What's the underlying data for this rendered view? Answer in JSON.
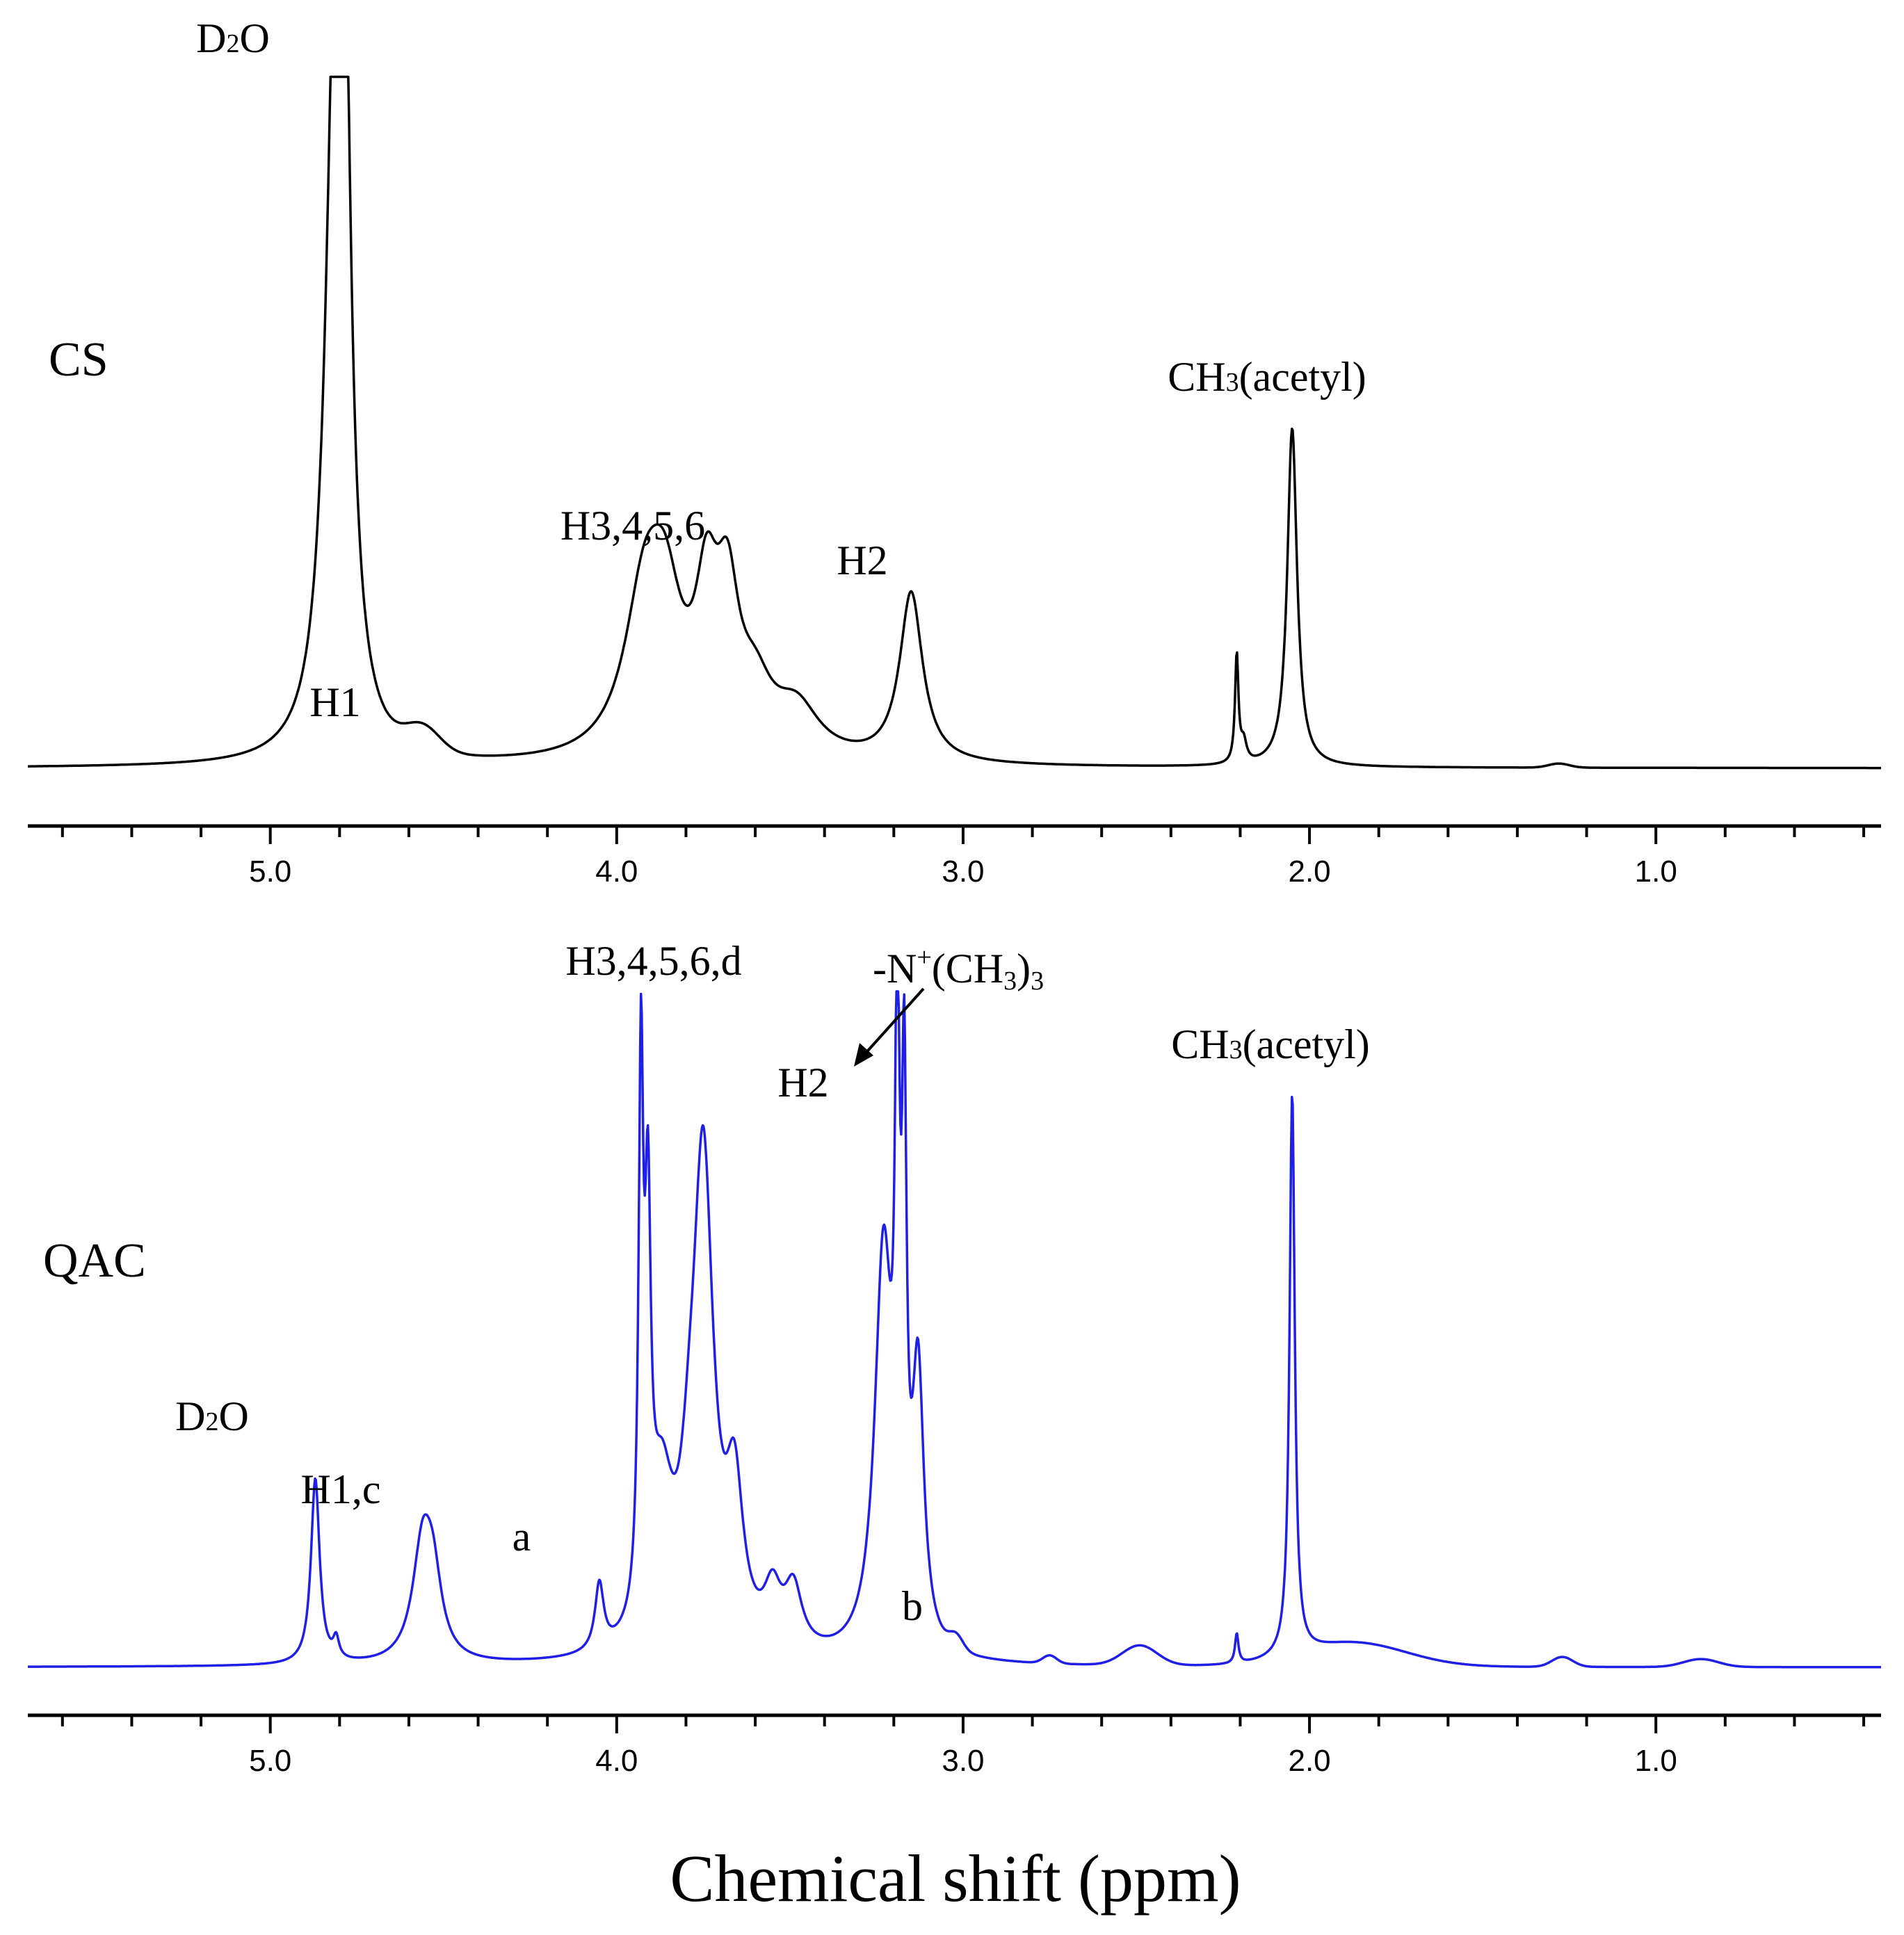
{
  "chart_data": {
    "type": "line",
    "title": "",
    "xlabel": "Chemical shift (ppm)",
    "ylabel": "",
    "xlim": [
      5.7,
      0.35
    ],
    "x_reversed": true,
    "grid": false,
    "panels": [
      {
        "name": "CS",
        "label": "CS",
        "color": "#000000",
        "axis_ticks_major": [
          5.0,
          4.0,
          3.0,
          2.0,
          1.0
        ],
        "axis_tick_labels": [
          "5.0",
          "4.0",
          "3.0",
          "2.0",
          "1.0"
        ],
        "baseline": 0,
        "ylim": [
          0,
          1.0
        ],
        "peaks": [
          {
            "x": 4.81,
            "y": 1.0,
            "w": 0.035,
            "type": "l"
          },
          {
            "x": 4.79,
            "y": 0.86,
            "w": 0.02,
            "type": "l"
          },
          {
            "x": 4.56,
            "y": 0.035,
            "w": 0.05,
            "type": "g"
          },
          {
            "x": 3.92,
            "y": 0.22,
            "w": 0.07,
            "type": "l"
          },
          {
            "x": 3.86,
            "y": 0.18,
            "w": 0.06,
            "type": "l"
          },
          {
            "x": 3.74,
            "y": 0.2,
            "w": 0.04,
            "type": "l"
          },
          {
            "x": 3.68,
            "y": 0.2,
            "w": 0.04,
            "type": "l"
          },
          {
            "x": 3.6,
            "y": 0.08,
            "w": 0.06,
            "type": "l"
          },
          {
            "x": 3.48,
            "y": 0.07,
            "w": 0.08,
            "type": "l"
          },
          {
            "x": 3.15,
            "y": 0.25,
            "w": 0.04,
            "type": "l"
          },
          {
            "x": 2.21,
            "y": 0.16,
            "w": 0.006,
            "type": "l"
          },
          {
            "x": 2.19,
            "y": 0.03,
            "w": 0.01,
            "type": "l"
          },
          {
            "x": 2.05,
            "y": 0.5,
            "w": 0.017,
            "type": "l"
          },
          {
            "x": 1.28,
            "y": 0.006,
            "w": 0.03,
            "type": "g"
          }
        ],
        "annotations": [
          {
            "text_parts": [
              "D",
              "2",
              "O"
            ],
            "x": 4.8
          },
          {
            "text": "H1",
            "x": 4.56
          },
          {
            "text": "H3,4,5,6",
            "x": 3.7
          },
          {
            "text": "H2",
            "x": 3.14
          },
          {
            "text_parts": [
              "CH",
              "3",
              "(acetyl)"
            ],
            "x": 2.08
          }
        ]
      },
      {
        "name": "QAC",
        "label": "QAC",
        "color": "#1f1fe6",
        "axis_ticks_major": [
          5.0,
          4.0,
          3.0,
          2.0,
          1.0
        ],
        "axis_tick_labels": [
          "5.0",
          "4.0",
          "3.0",
          "2.0",
          "1.0"
        ],
        "baseline": 0,
        "ylim": [
          0,
          1.0
        ],
        "peaks": [
          {
            "x": 4.87,
            "y": 0.28,
            "w": 0.015,
            "type": "l"
          },
          {
            "x": 4.81,
            "y": 0.03,
            "w": 0.01,
            "type": "l"
          },
          {
            "x": 4.56,
            "y": 0.17,
            "w": 0.035,
            "type": "l"
          },
          {
            "x": 4.53,
            "y": 0.1,
            "w": 0.03,
            "type": "l"
          },
          {
            "x": 4.05,
            "y": 0.1,
            "w": 0.015,
            "type": "l"
          },
          {
            "x": 3.93,
            "y": 0.8,
            "w": 0.008,
            "type": "l"
          },
          {
            "x": 3.91,
            "y": 0.55,
            "w": 0.01,
            "type": "l"
          },
          {
            "x": 3.87,
            "y": 0.22,
            "w": 0.04,
            "type": "l"
          },
          {
            "x": 3.79,
            "y": 0.12,
            "w": 0.03,
            "type": "l"
          },
          {
            "x": 3.75,
            "y": 0.72,
            "w": 0.035,
            "type": "l"
          },
          {
            "x": 3.66,
            "y": 0.22,
            "w": 0.03,
            "type": "l"
          },
          {
            "x": 3.55,
            "y": 0.08,
            "w": 0.03,
            "type": "l"
          },
          {
            "x": 3.49,
            "y": 0.09,
            "w": 0.03,
            "type": "l"
          },
          {
            "x": 3.23,
            "y": 0.6,
            "w": 0.03,
            "type": "l"
          },
          {
            "x": 3.19,
            "y": 0.8,
            "w": 0.008,
            "type": "l"
          },
          {
            "x": 3.17,
            "y": 0.7,
            "w": 0.008,
            "type": "l"
          },
          {
            "x": 3.13,
            "y": 0.4,
            "w": 0.02,
            "type": "l"
          },
          {
            "x": 3.02,
            "y": 0.02,
            "w": 0.02,
            "type": "g"
          },
          {
            "x": 2.75,
            "y": 0.012,
            "w": 0.02,
            "type": "g"
          },
          {
            "x": 2.49,
            "y": 0.03,
            "w": 0.05,
            "type": "g"
          },
          {
            "x": 2.21,
            "y": 0.045,
            "w": 0.006,
            "type": "l"
          },
          {
            "x": 2.05,
            "y": 0.85,
            "w": 0.009,
            "type": "l"
          },
          {
            "x": 1.87,
            "y": 0.035,
            "w": 0.15,
            "type": "g"
          },
          {
            "x": 1.27,
            "y": 0.015,
            "w": 0.03,
            "type": "g"
          },
          {
            "x": 0.87,
            "y": 0.012,
            "w": 0.05,
            "type": "g"
          }
        ],
        "annotations": [
          {
            "text_parts": [
              "D",
              "2",
              "O"
            ],
            "x": 4.87
          },
          {
            "text": "H1,c",
            "x": 4.56
          },
          {
            "text": "a",
            "x": 4.05
          },
          {
            "text": "H3,4,5,6,d",
            "x": 3.68
          },
          {
            "text": "H2",
            "x": 3.2
          },
          {
            "text_parts": [
              "-N",
              "+",
              "(CH",
              "3",
              ")",
              "3"
            ],
            "x": 3.0
          },
          {
            "text": "b",
            "x": 3.0
          },
          {
            "text_parts": [
              "CH",
              "3",
              "(acetyl)"
            ],
            "x": 2.08
          }
        ]
      }
    ]
  }
}
